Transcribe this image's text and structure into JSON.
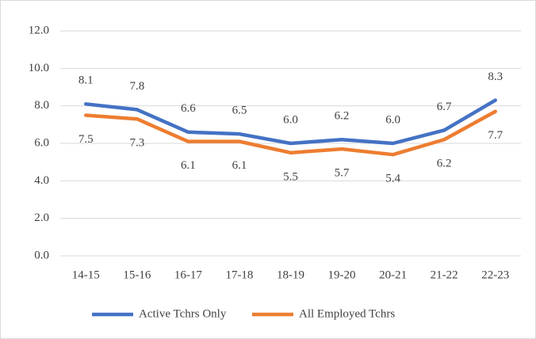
{
  "chart_data": {
    "type": "line",
    "categories": [
      "14-15",
      "15-16",
      "16-17",
      "17-18",
      "18-19",
      "19-20",
      "20-21",
      "21-22",
      "22-23"
    ],
    "series": [
      {
        "name": "Active Tchrs Only",
        "color": "#4472c4",
        "values": [
          8.1,
          7.8,
          6.6,
          6.5,
          6.0,
          6.2,
          6.0,
          6.7,
          8.3
        ],
        "value_labels": [
          "8.1",
          "7.8",
          "6.6",
          "6.5",
          "6.0",
          "6.2",
          "6.0",
          "6.7",
          "8.3"
        ]
      },
      {
        "name": "All Employed Tchrs",
        "color": "#ed7d31",
        "values": [
          7.5,
          7.3,
          6.1,
          6.1,
          5.5,
          5.7,
          5.4,
          6.2,
          7.7
        ],
        "value_labels": [
          "7.5",
          "7.3",
          "6.1",
          "6.1",
          "5.5",
          "5.7",
          "5.4",
          "6.2",
          "7.7"
        ]
      }
    ],
    "ylim": [
      0,
      12
    ],
    "yticks": [
      {
        "value": 0,
        "label": "0.0"
      },
      {
        "value": 2,
        "label": "2.0"
      },
      {
        "value": 4,
        "label": "4.0"
      },
      {
        "value": 6,
        "label": "6.0"
      },
      {
        "value": 8,
        "label": "8.0"
      },
      {
        "value": 10,
        "label": "10.0"
      },
      {
        "value": 12,
        "label": "12.0"
      }
    ],
    "grid": true,
    "legend": "bottom"
  }
}
